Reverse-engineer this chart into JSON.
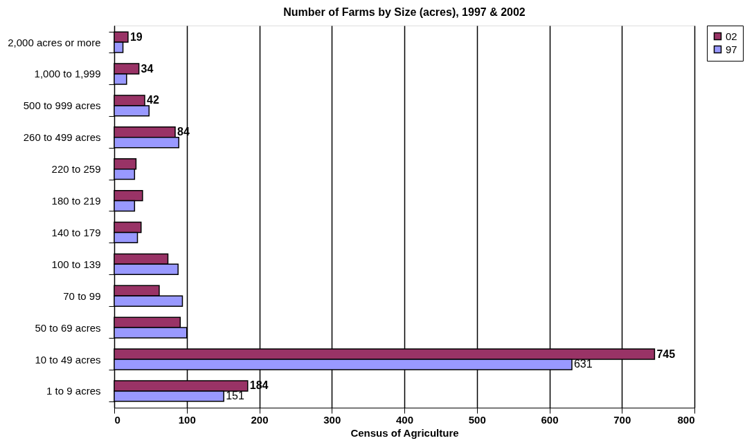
{
  "chart_data": {
    "type": "bar",
    "orientation": "horizontal",
    "title": "Number of Farms by Size (acres), 1997 & 2002",
    "xlabel": "Census of Agriculture",
    "categories": [
      "2,000 acres or more",
      "1,000 to 1,999",
      "500 to 999 acres",
      "260 to 499 acres",
      "220 to 259",
      "180 to 219",
      "140 to 179",
      "100 to 139",
      "70 to 99",
      "50 to 69 acres",
      "10 to 49 acres",
      "1 to 9 acres"
    ],
    "series": [
      {
        "name": "02",
        "color": "#993366",
        "values": [
          19,
          34,
          42,
          84,
          30,
          39,
          37,
          74,
          62,
          91,
          745,
          184
        ],
        "value_labels": [
          "19",
          "34",
          "42",
          "84",
          null,
          null,
          null,
          null,
          null,
          null,
          "745",
          "184"
        ]
      },
      {
        "name": "97",
        "color": "#9999ff",
        "values": [
          12,
          17,
          48,
          89,
          28,
          28,
          32,
          88,
          94,
          100,
          631,
          151
        ],
        "value_labels": [
          null,
          null,
          null,
          null,
          null,
          null,
          null,
          null,
          null,
          null,
          "631",
          "151"
        ]
      }
    ],
    "xlim": [
      0,
      800
    ],
    "xticks": [
      0,
      100,
      200,
      300,
      400,
      500,
      600,
      700,
      800
    ],
    "grid": "x",
    "legend": "right"
  }
}
